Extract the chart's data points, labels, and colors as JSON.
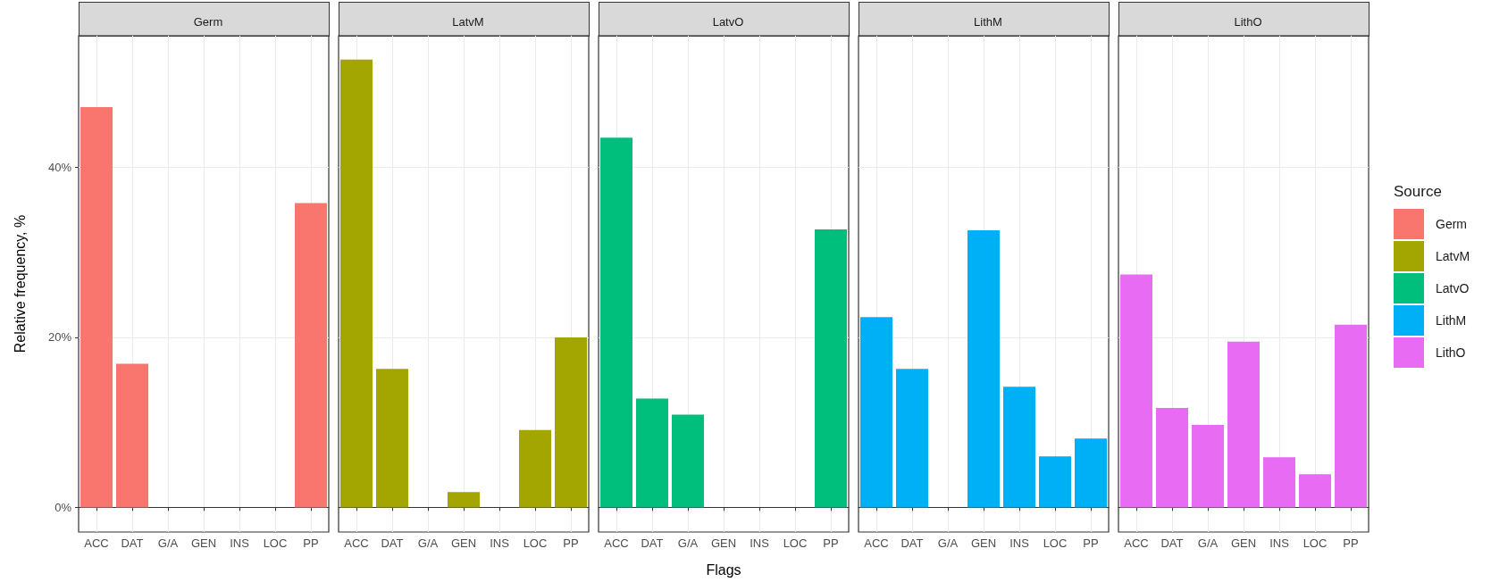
{
  "chart_data": [
    {
      "type": "bar",
      "title": "Germ",
      "ylabel": "Relative frequency, %",
      "categories": [
        "ACC",
        "DAT",
        "G/A",
        "GEN",
        "INS",
        "LOC",
        "PP"
      ],
      "series": [
        {
          "name": "Germ",
          "color": "#f8766d",
          "values": [
            47.1,
            16.9,
            null,
            null,
            null,
            null,
            35.8
          ]
        }
      ],
      "ylim": [
        -2.9,
        55.5
      ],
      "yticks": [
        {
          "value": 0,
          "label": "0%"
        },
        {
          "value": 20,
          "label": "20%"
        },
        {
          "value": 40,
          "label": "40%"
        }
      ],
      "grid": true,
      "legend": "right"
    },
    {
      "type": "bar",
      "title": "LatvM",
      "categories": [
        "ACC",
        "DAT",
        "G/A",
        "GEN",
        "INS",
        "LOC",
        "PP"
      ],
      "series": [
        {
          "name": "LatvM",
          "color": "#a3a500",
          "values": [
            52.7,
            16.3,
            null,
            1.8,
            null,
            9.1,
            20.0
          ]
        }
      ],
      "ylim": [
        -2.9,
        55.5
      ],
      "yticks": [
        0,
        20,
        40
      ],
      "grid": true,
      "legend": "right",
      "tick_labels": "x"
    },
    {
      "type": "bar",
      "title": "LatvO",
      "xlabel": "Flags",
      "categories": [
        "ACC",
        "DAT",
        "G/A",
        "GEN",
        "INS",
        "LOC",
        "PP"
      ],
      "series": [
        {
          "name": "LatvO",
          "color": "#00bf7d",
          "values": [
            43.5,
            12.8,
            10.9,
            null,
            null,
            null,
            32.7
          ]
        }
      ],
      "ylim": [
        -2.9,
        55.5
      ],
      "yticks": [
        0,
        20,
        40
      ],
      "grid": true,
      "legend": "right",
      "tick_labels": "x"
    },
    {
      "type": "bar",
      "title": "LithM",
      "categories": [
        "ACC",
        "DAT",
        "G/A",
        "GEN",
        "INS",
        "LOC",
        "PP"
      ],
      "series": [
        {
          "name": "LithM",
          "color": "#00b0f6",
          "values": [
            22.4,
            16.3,
            null,
            32.6,
            14.2,
            6.0,
            8.1
          ]
        }
      ],
      "ylim": [
        -2.9,
        55.5
      ],
      "yticks": [
        0,
        20,
        40
      ],
      "grid": true,
      "legend": "right",
      "tick_labels": "x"
    },
    {
      "type": "bar",
      "title": "LithO",
      "legend_title": "Source",
      "categories": [
        "ACC",
        "DAT",
        "G/A",
        "GEN",
        "INS",
        "LOC",
        "PP"
      ],
      "series": [
        {
          "name": "LithO",
          "color": "#e76bf3",
          "values": [
            27.4,
            11.7,
            9.7,
            19.5,
            5.9,
            3.9,
            21.5
          ]
        }
      ],
      "ylim": [
        -2.9,
        55.5
      ],
      "yticks": [
        0,
        20,
        40
      ],
      "grid": true,
      "legend": "right",
      "tick_labels": "x"
    }
  ]
}
